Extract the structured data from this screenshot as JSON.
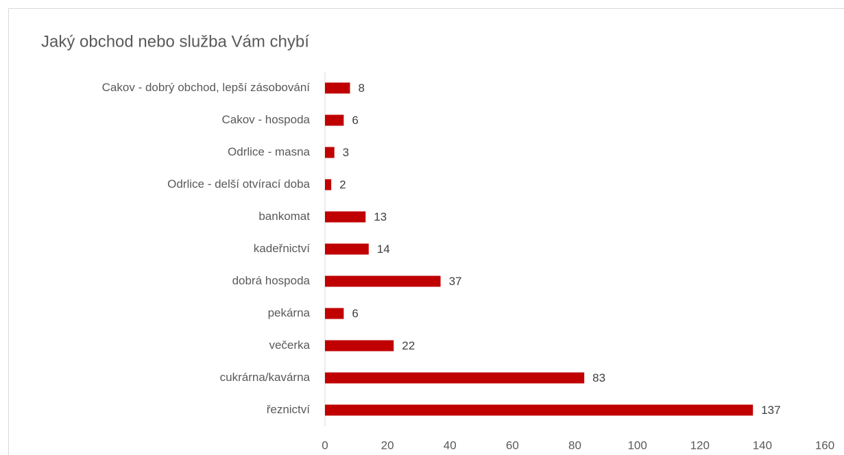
{
  "chart_data": {
    "type": "bar",
    "orientation": "horizontal",
    "title": "Jaký obchod nebo služba Vám chybí",
    "categories": [
      "Cakov - dobrý obchod, lepší zásobování",
      "Cakov - hospoda",
      "Odrlice - masna",
      "Odrlice - delší otvírací doba",
      "bankomat",
      "kadeřnictví",
      "dobrá hospoda",
      "pekárna",
      "večerka",
      "cukrárna/kavárna",
      "řeznictví"
    ],
    "values": [
      8,
      6,
      3,
      2,
      13,
      14,
      37,
      6,
      22,
      83,
      137
    ],
    "color": "#c00000",
    "xlim": [
      0,
      160
    ],
    "xticks": [
      0,
      20,
      40,
      60,
      80,
      100,
      120,
      140,
      160
    ],
    "grid": false
  }
}
